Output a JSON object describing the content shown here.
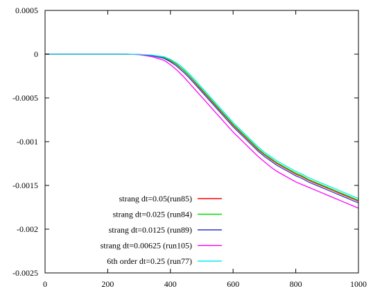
{
  "chart_data": {
    "type": "line",
    "title": "",
    "xlabel": "",
    "ylabel": "",
    "xlim": [
      0,
      1000
    ],
    "ylim": [
      -0.0025,
      0.0005
    ],
    "grid": false,
    "legend_position": "bottom-center",
    "x_ticks": [
      {
        "value": 0,
        "label": "0"
      },
      {
        "value": 200,
        "label": "200"
      },
      {
        "value": 400,
        "label": "400"
      },
      {
        "value": 600,
        "label": "600"
      },
      {
        "value": 800,
        "label": "800"
      },
      {
        "value": 1000,
        "label": "1000"
      }
    ],
    "y_ticks": [
      {
        "value": 0.0005,
        "label": "0.0005"
      },
      {
        "value": 0,
        "label": "0"
      },
      {
        "value": -0.0005,
        "label": "-0.0005"
      },
      {
        "value": -0.001,
        "label": "-0.001"
      },
      {
        "value": -0.0015,
        "label": "-0.0015"
      },
      {
        "value": -0.002,
        "label": "-0.002"
      },
      {
        "value": -0.0025,
        "label": "-0.0025"
      }
    ],
    "x": [
      0,
      100,
      200,
      260,
      300,
      340,
      380,
      400,
      420,
      440,
      460,
      480,
      500,
      520,
      540,
      560,
      580,
      600,
      620,
      640,
      660,
      680,
      700,
      720,
      740,
      760,
      780,
      800,
      820,
      840,
      860,
      880,
      900,
      920,
      940,
      960,
      980,
      1000
    ],
    "series": [
      {
        "name": "strang dt=0.05(run85)",
        "color": "#ff0000",
        "values": [
          0,
          0,
          0,
          0,
          -3e-06,
          -1.5e-05,
          -4e-05,
          -7.5e-05,
          -0.00012,
          -0.00018,
          -0.00025,
          -0.00033,
          -0.00041,
          -0.00049,
          -0.00057,
          -0.00065,
          -0.00073,
          -0.00081,
          -0.00088,
          -0.00095,
          -0.00102,
          -0.00109,
          -0.00115,
          -0.0012,
          -0.00125,
          -0.00129,
          -0.00133,
          -0.00137,
          -0.0014,
          -0.00144,
          -0.00147,
          -0.0015,
          -0.00153,
          -0.00156,
          -0.00159,
          -0.00162,
          -0.00165,
          -0.00168
        ]
      },
      {
        "name": "strang dt=0.025 (run84)",
        "color": "#00dd00",
        "values": [
          0,
          0,
          0,
          0,
          -3e-06,
          -1.3e-05,
          -3.6e-05,
          -7e-05,
          -0.000115,
          -0.000175,
          -0.000245,
          -0.000322,
          -0.0004,
          -0.00048,
          -0.00056,
          -0.00064,
          -0.00072,
          -0.0008,
          -0.00087,
          -0.00094,
          -0.00101,
          -0.00108,
          -0.00114,
          -0.00119,
          -0.00124,
          -0.00128,
          -0.00132,
          -0.00136,
          -0.00139,
          -0.00143,
          -0.00146,
          -0.00149,
          -0.00152,
          -0.00155,
          -0.00158,
          -0.00161,
          -0.00164,
          -0.00167
        ]
      },
      {
        "name": "strang dt=0.0125 (run89)",
        "color": "#3030cc",
        "values": [
          0,
          0,
          0,
          0,
          -4e-06,
          -1.8e-05,
          -4.8e-05,
          -8.8e-05,
          -0.000137,
          -0.0002,
          -0.00027,
          -0.00035,
          -0.00043,
          -0.00051,
          -0.00059,
          -0.00067,
          -0.00075,
          -0.00083,
          -0.0009,
          -0.00097,
          -0.00104,
          -0.00111,
          -0.00117,
          -0.00122,
          -0.00127,
          -0.00131,
          -0.00135,
          -0.00139,
          -0.00142,
          -0.00146,
          -0.00149,
          -0.00152,
          -0.00155,
          -0.00158,
          -0.00161,
          -0.00164,
          -0.00167,
          -0.0017
        ]
      },
      {
        "name": "strang dt=0.00625 (run105)",
        "color": "#ff00ff",
        "values": [
          0,
          0,
          0,
          0,
          -6e-06,
          -2.8e-05,
          -7e-05,
          -0.00012,
          -0.00018,
          -0.00025,
          -0.00033,
          -0.00041,
          -0.00049,
          -0.00057,
          -0.00065,
          -0.00073,
          -0.00081,
          -0.00089,
          -0.00096,
          -0.00103,
          -0.0011,
          -0.00117,
          -0.00123,
          -0.00129,
          -0.00134,
          -0.00138,
          -0.00142,
          -0.00146,
          -0.00149,
          -0.00152,
          -0.00155,
          -0.00158,
          -0.00161,
          -0.00164,
          -0.00167,
          -0.0017,
          -0.00173,
          -0.00176
        ]
      },
      {
        "name": "6th order dt=0.25 (run77)",
        "color": "#00eeee",
        "values": [
          0,
          0,
          0,
          0,
          -2e-06,
          -1e-05,
          -3e-05,
          -6e-05,
          -0.0001,
          -0.000155,
          -0.000225,
          -0.0003,
          -0.00038,
          -0.00046,
          -0.00054,
          -0.00062,
          -0.0007,
          -0.00078,
          -0.00085,
          -0.00092,
          -0.00099,
          -0.00106,
          -0.00112,
          -0.00117,
          -0.00122,
          -0.00126,
          -0.0013,
          -0.00134,
          -0.00137,
          -0.00141,
          -0.00144,
          -0.00147,
          -0.0015,
          -0.00153,
          -0.00156,
          -0.00159,
          -0.00162,
          -0.00165
        ]
      }
    ]
  }
}
